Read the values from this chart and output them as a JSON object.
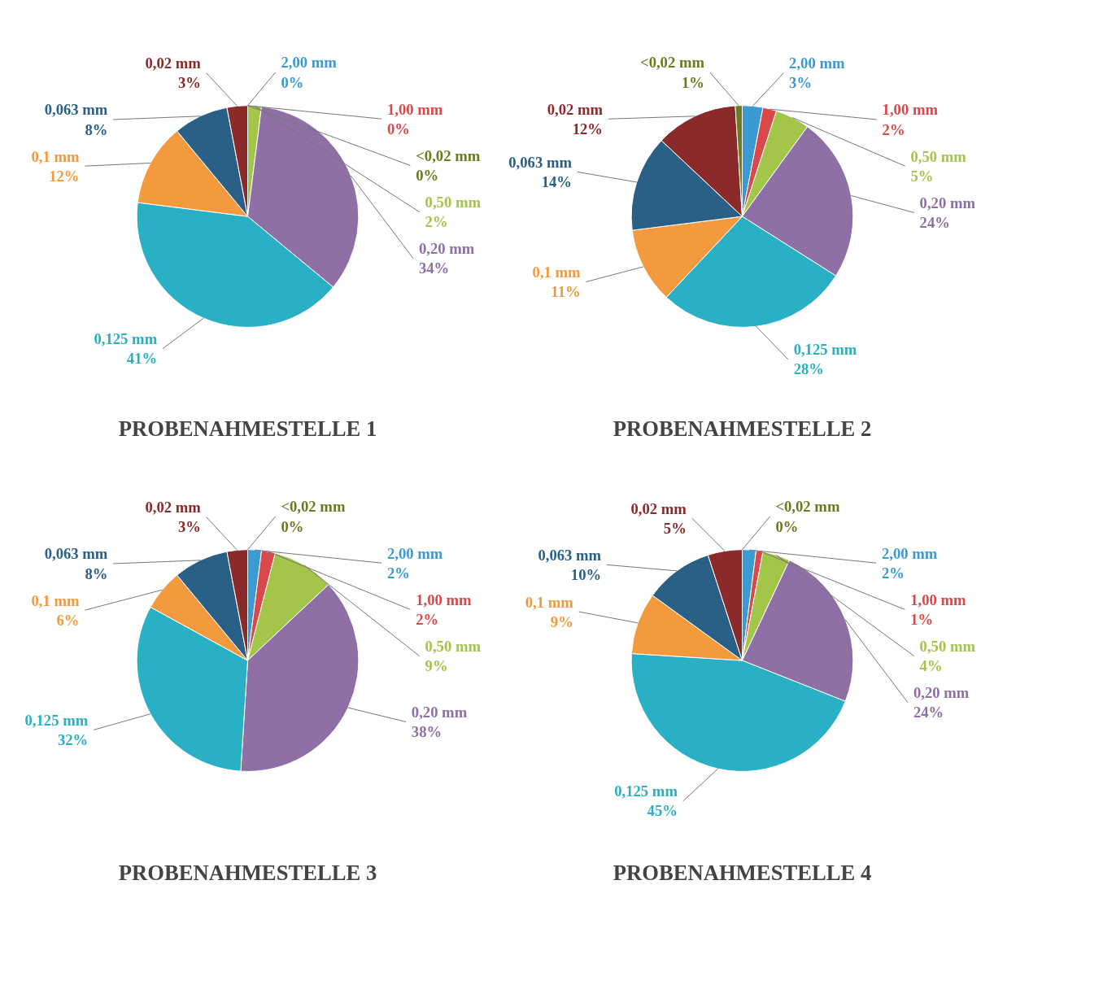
{
  "chart_data": [
    {
      "type": "pie",
      "title": "PROBENAHMESTELLE 1",
      "categories": [
        "2,00 mm",
        "1,00 mm",
        "0,50 mm",
        "0,20 mm",
        "0,125 mm",
        "0,1 mm",
        "0,063 mm",
        "0,02 mm",
        "<0,02 mm"
      ],
      "values": [
        0,
        0,
        2,
        34,
        41,
        12,
        8,
        3,
        0
      ],
      "value_labels": [
        "0%",
        "0%",
        "2%",
        "34%",
        "41%",
        "12%",
        "8%",
        "3%",
        "0%"
      ],
      "colors": [
        "#3a9ad1",
        "#d9484a",
        "#a3c54a",
        "#8e6fa6",
        "#2ab0c5",
        "#f39a3e",
        "#2a5f86",
        "#8b2a2a",
        "#6e7a1e"
      ]
    },
    {
      "type": "pie",
      "title": "PROBENAHMESTELLE 2",
      "categories": [
        "2,00 mm",
        "1,00 mm",
        "0,50 mm",
        "0,20 mm",
        "0,125 mm",
        "0,1 mm",
        "0,063 mm",
        "0,02 mm",
        "<0,02 mm"
      ],
      "values": [
        3,
        2,
        5,
        24,
        28,
        11,
        14,
        12,
        1
      ],
      "value_labels": [
        "3%",
        "2%",
        "5%",
        "24%",
        "28%",
        "11%",
        "14%",
        "12%",
        "1%"
      ],
      "colors": [
        "#3a9ad1",
        "#d9484a",
        "#a3c54a",
        "#8e6fa6",
        "#2ab0c5",
        "#f39a3e",
        "#2a5f86",
        "#8b2a2a",
        "#6e7a1e"
      ]
    },
    {
      "type": "pie",
      "title": "PROBENAHMESTELLE 3",
      "categories": [
        "2,00 mm",
        "1,00 mm",
        "0,50 mm",
        "0,20 mm",
        "0,125 mm",
        "0,1 mm",
        "0,063 mm",
        "0,02 mm",
        "<0,02 mm"
      ],
      "values": [
        2,
        2,
        9,
        38,
        32,
        6,
        8,
        3,
        0
      ],
      "value_labels": [
        "2%",
        "2%",
        "9%",
        "38%",
        "32%",
        "6%",
        "8%",
        "3%",
        "0%"
      ],
      "colors": [
        "#3a9ad1",
        "#d9484a",
        "#a3c54a",
        "#8e6fa6",
        "#2ab0c5",
        "#f39a3e",
        "#2a5f86",
        "#8b2a2a",
        "#6e7a1e"
      ]
    },
    {
      "type": "pie",
      "title": "PROBENAHMESTELLE 4",
      "categories": [
        "2,00 mm",
        "1,00 mm",
        "0,50 mm",
        "0,20 mm",
        "0,125 mm",
        "0,1 mm",
        "0,063 mm",
        "0,02 mm",
        "<0,02 mm"
      ],
      "values": [
        2,
        1,
        4,
        24,
        45,
        9,
        10,
        5,
        0
      ],
      "value_labels": [
        "2%",
        "1%",
        "4%",
        "24%",
        "45%",
        "9%",
        "10%",
        "5%",
        "0%"
      ],
      "colors": [
        "#3a9ad1",
        "#d9484a",
        "#a3c54a",
        "#8e6fa6",
        "#2ab0c5",
        "#f39a3e",
        "#2a5f86",
        "#8b2a2a",
        "#6e7a1e"
      ]
    }
  ]
}
